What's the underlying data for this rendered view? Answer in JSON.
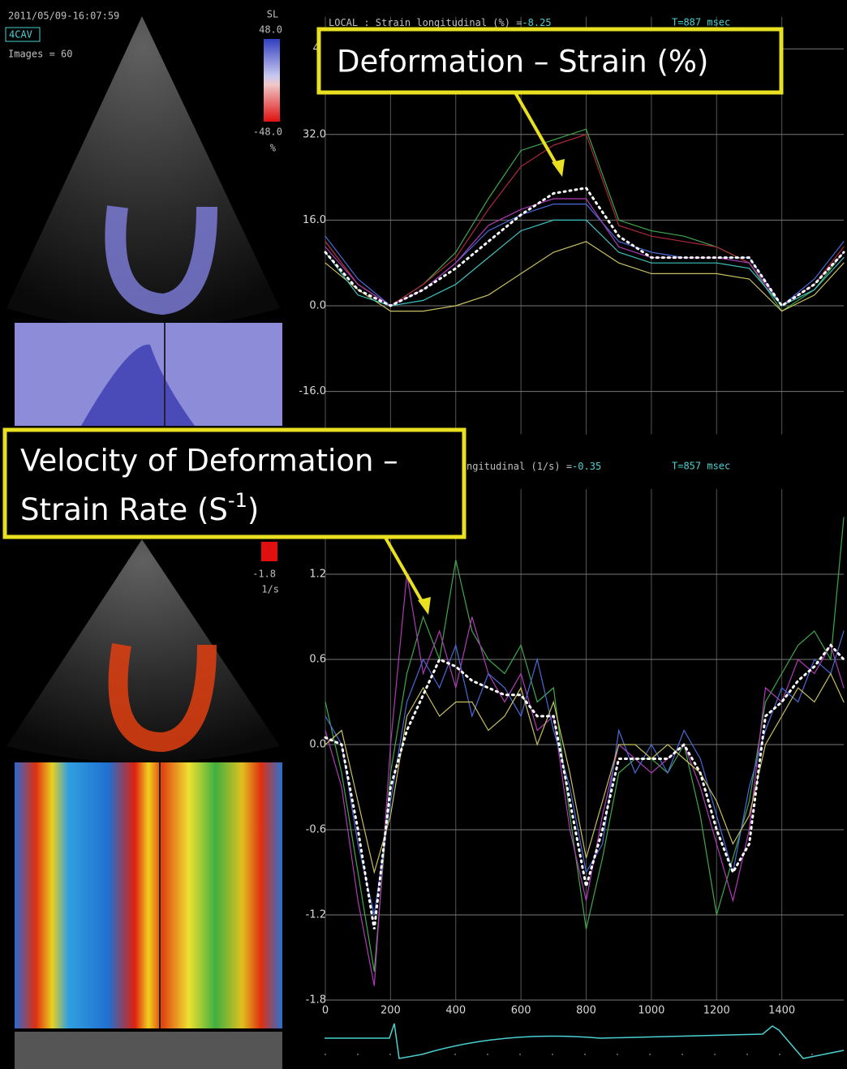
{
  "left_panel": {
    "timestamp": "2011/05/09-16:07:59",
    "view": "4CAV",
    "images": "Images = 60",
    "scale_name": "SL",
    "scale_max": "48.0",
    "scale_min": "-48.0",
    "scale_unit": "%",
    "rate_scale_min": "-1.8",
    "rate_scale_unit": "1/s"
  },
  "annotations": {
    "strain": "Deformation – Strain (%)",
    "rate_line1": "Velocity of Deformation –",
    "rate_line2": "Strain  Rate (S",
    "rate_sup": "-1",
    "rate_close": ")"
  },
  "chart_data": [
    {
      "type": "line",
      "header": "LOCAL : Strain longitudinal (%) =",
      "header_value": "-8.25",
      "time": "T=887 msec",
      "xlim": [
        0,
        1590
      ],
      "ylim": [
        -24,
        54
      ],
      "yticks": [
        48,
        {
          "value": 32,
          "label": "32.0"
        },
        {
          "value": 16,
          "label": "16.0"
        },
        {
          "value": 0,
          "label": "0.0"
        },
        {
          "value": -16,
          "label": "-16.0"
        }
      ],
      "grid": true,
      "x": [
        0,
        100,
        200,
        300,
        400,
        500,
        600,
        700,
        800,
        900,
        1000,
        1100,
        1200,
        1300,
        1400,
        1500,
        1590
      ],
      "series": [
        {
          "color": "#3fa84a",
          "line_style": "solid",
          "values": [
            12,
            4,
            0,
            4,
            10,
            20,
            29,
            31,
            33,
            16,
            14,
            13,
            11,
            8,
            -1,
            3,
            10
          ]
        },
        {
          "color": "#b0283a",
          "line_style": "solid",
          "values": [
            12,
            4,
            0,
            4,
            9,
            18,
            26,
            30,
            32,
            15,
            13,
            12,
            11,
            8,
            0,
            4,
            11
          ]
        },
        {
          "color": "#4a6ad8",
          "line_style": "solid",
          "values": [
            13,
            5,
            0,
            3,
            8,
            14,
            17,
            19,
            19,
            12,
            10,
            9,
            9,
            9,
            0,
            5,
            12
          ]
        },
        {
          "color": "#b03ab8",
          "line_style": "solid",
          "values": [
            11,
            4,
            0,
            3,
            8,
            15,
            18,
            20,
            20,
            11,
            9,
            9,
            9,
            8,
            0,
            4,
            10
          ]
        },
        {
          "color": "#c8c060",
          "line_style": "solid",
          "values": [
            8,
            3,
            -1,
            -1,
            0,
            2,
            6,
            10,
            12,
            8,
            6,
            6,
            6,
            5,
            -1,
            2,
            8
          ]
        },
        {
          "color": "#3fc0c0",
          "line_style": "solid",
          "values": [
            10,
            2,
            0,
            1,
            4,
            9,
            14,
            16,
            16,
            10,
            8,
            8,
            8,
            7,
            0,
            3,
            9
          ]
        },
        {
          "color": "#ffffff",
          "line_style": "dotted",
          "values": [
            10,
            3,
            0,
            3,
            7,
            12,
            17,
            21,
            22,
            13,
            9,
            9,
            9,
            9,
            0,
            4,
            10
          ]
        }
      ]
    },
    {
      "type": "line",
      "header": "ngitudinal (1/s) =",
      "header_value": "-0.35",
      "time": "T=857 msec",
      "xlim": [
        0,
        1590
      ],
      "ylim": [
        -1.8,
        1.8
      ],
      "yticks": [
        1.2,
        0.6,
        {
          "value": 0,
          "label": "0.0"
        },
        -0.6,
        -1.2,
        -1.8
      ],
      "xticks": [
        0,
        200,
        400,
        600,
        800,
        1000,
        1200,
        1400
      ],
      "grid": true,
      "x": [
        0,
        50,
        100,
        150,
        200,
        250,
        300,
        350,
        400,
        450,
        500,
        550,
        600,
        650,
        700,
        750,
        800,
        850,
        900,
        950,
        1000,
        1050,
        1100,
        1150,
        1200,
        1250,
        1300,
        1350,
        1400,
        1450,
        1500,
        1550,
        1590
      ],
      "series": [
        {
          "color": "#3fa84a",
          "line_style": "solid",
          "values": [
            0.3,
            -0.2,
            -0.9,
            -1.6,
            -0.2,
            0.5,
            0.9,
            0.6,
            1.3,
            0.8,
            0.6,
            0.5,
            0.7,
            0.3,
            0.4,
            -0.5,
            -1.3,
            -0.8,
            -0.2,
            -0.1,
            -0.1,
            -0.2,
            0.0,
            -0.5,
            -1.2,
            -0.8,
            -0.4,
            0.3,
            0.5,
            0.7,
            0.8,
            0.6,
            1.6
          ]
        },
        {
          "color": "#b03ab8",
          "line_style": "solid",
          "values": [
            0.1,
            -0.3,
            -1.1,
            -1.7,
            0.0,
            1.2,
            0.5,
            0.8,
            0.4,
            0.9,
            0.5,
            0.3,
            0.5,
            0.1,
            0.2,
            -0.6,
            -1.1,
            -0.5,
            0.0,
            -0.1,
            -0.2,
            -0.1,
            0.0,
            -0.3,
            -0.7,
            -1.1,
            -0.6,
            0.4,
            0.3,
            0.6,
            0.5,
            0.7,
            0.4
          ]
        },
        {
          "color": "#4a6ad8",
          "line_style": "solid",
          "values": [
            0.2,
            0.0,
            -0.7,
            -1.2,
            -0.4,
            0.3,
            0.6,
            0.4,
            0.7,
            0.2,
            0.5,
            0.4,
            0.2,
            0.6,
            0.1,
            -0.3,
            -0.9,
            -0.7,
            0.1,
            -0.2,
            0.0,
            -0.2,
            0.1,
            -0.1,
            -0.5,
            -0.9,
            -0.3,
            0.1,
            0.4,
            0.3,
            0.6,
            0.5,
            0.8
          ]
        },
        {
          "color": "#c8c060",
          "line_style": "solid",
          "values": [
            0.0,
            0.1,
            -0.4,
            -0.9,
            -0.5,
            0.2,
            0.4,
            0.2,
            0.3,
            0.3,
            0.1,
            0.2,
            0.4,
            0.0,
            0.3,
            -0.2,
            -0.8,
            -0.4,
            0.0,
            0.0,
            -0.1,
            0.0,
            -0.1,
            -0.2,
            -0.4,
            -0.7,
            -0.5,
            0.0,
            0.2,
            0.4,
            0.3,
            0.5,
            0.3
          ]
        },
        {
          "color": "#ffffff",
          "line_style": "dotted",
          "values": [
            0.05,
            0.0,
            -0.6,
            -1.3,
            -0.3,
            0.1,
            0.35,
            0.6,
            0.55,
            0.45,
            0.4,
            0.35,
            0.35,
            0.2,
            0.2,
            -0.4,
            -1.0,
            -0.6,
            -0.1,
            -0.1,
            -0.1,
            -0.1,
            0.0,
            -0.2,
            -0.6,
            -0.9,
            -0.7,
            0.2,
            0.3,
            0.45,
            0.55,
            0.7,
            0.6
          ]
        }
      ]
    }
  ]
}
